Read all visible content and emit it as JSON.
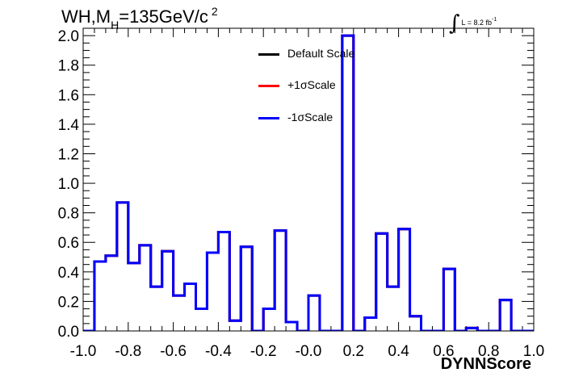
{
  "header": {
    "title_main": "WH,M",
    "title_sub": "H",
    "title_rest": "=135GeV/c",
    "title_sup": "2",
    "lumi_symbol": "∫",
    "lumi_text": "L = 8.2 fb",
    "lumi_sup": "-1"
  },
  "colors": {
    "default": "#000000",
    "plus": "#ff0000",
    "minus": "#0000ff"
  },
  "chart_data": {
    "type": "line",
    "xlabel": "DYNNScore",
    "ylabel": "",
    "xlim": [
      -1.0,
      1.0
    ],
    "ylim": [
      0.0,
      2.05
    ],
    "grid": false,
    "legend_position": "top-center",
    "x_tick_labels": [
      "-1.0",
      "-0.8",
      "-0.6",
      "-0.4",
      "-0.2",
      "-0.0",
      "0.2",
      "0.4",
      "0.6",
      "0.8",
      "1.0"
    ],
    "y_tick_labels": [
      "0.0",
      "0.2",
      "0.4",
      "0.6",
      "0.8",
      "1.0",
      "1.2",
      "1.4",
      "1.6",
      "1.8",
      "2.0"
    ],
    "bin_edges": [
      -1.0,
      -0.95,
      -0.9,
      -0.85,
      -0.8,
      -0.75,
      -0.7,
      -0.65,
      -0.6,
      -0.55,
      -0.5,
      -0.45,
      -0.4,
      -0.35,
      -0.3,
      -0.25,
      -0.2,
      -0.15,
      -0.1,
      -0.05,
      0.0,
      0.05,
      0.1,
      0.15,
      0.2,
      0.25,
      0.3,
      0.35,
      0.4,
      0.45,
      0.5,
      0.55,
      0.6,
      0.65,
      0.7,
      0.75,
      0.8,
      0.85,
      0.9,
      0.95,
      1.0
    ],
    "series": [
      {
        "name": "Default Scale",
        "color": "#000000",
        "values": [
          0.0,
          0.47,
          0.51,
          0.87,
          0.46,
          0.58,
          0.3,
          0.54,
          0.24,
          0.32,
          0.15,
          0.53,
          0.67,
          0.07,
          0.57,
          0.0,
          0.15,
          0.68,
          0.06,
          0.0,
          0.24,
          0.0,
          0.0,
          2.0,
          0.0,
          0.09,
          0.66,
          0.3,
          0.69,
          0.1,
          0.0,
          0.0,
          0.42,
          0.0,
          0.02,
          0.0,
          0.0,
          0.21,
          0.0,
          0.0
        ]
      },
      {
        "name": "+1σScale",
        "color": "#ff0000",
        "values": [
          0.0,
          0.47,
          0.51,
          0.87,
          0.46,
          0.58,
          0.3,
          0.54,
          0.24,
          0.32,
          0.15,
          0.53,
          0.67,
          0.07,
          0.57,
          0.0,
          0.15,
          0.68,
          0.06,
          0.0,
          0.24,
          0.0,
          0.0,
          2.0,
          0.0,
          0.09,
          0.66,
          0.3,
          0.69,
          0.1,
          0.0,
          0.0,
          0.42,
          0.0,
          0.02,
          0.0,
          0.0,
          0.21,
          0.0,
          0.0
        ]
      },
      {
        "name": "-1σScale",
        "color": "#0000ff",
        "values": [
          0.0,
          0.47,
          0.51,
          0.87,
          0.46,
          0.58,
          0.3,
          0.54,
          0.24,
          0.32,
          0.15,
          0.53,
          0.67,
          0.07,
          0.57,
          0.0,
          0.15,
          0.68,
          0.06,
          0.0,
          0.24,
          0.0,
          0.0,
          2.0,
          0.0,
          0.09,
          0.66,
          0.3,
          0.69,
          0.1,
          0.0,
          0.0,
          0.42,
          0.0,
          0.02,
          0.0,
          0.0,
          0.21,
          0.0,
          0.0
        ]
      }
    ]
  }
}
